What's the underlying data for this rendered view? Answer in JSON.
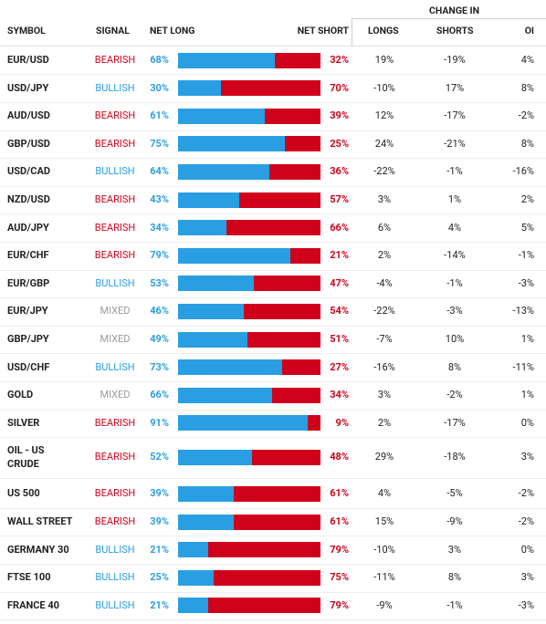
{
  "header": {
    "symbol": "SYMBOL",
    "signal": "SIGNAL",
    "net_long": "NET LONG",
    "net_short": "NET SHORT",
    "change_in": "CHANGE IN",
    "longs": "LONGS",
    "shorts": "SHORTS",
    "oi": "OI"
  },
  "colors": {
    "long": "#2a9ee2",
    "short": "#d0021b"
  },
  "table": {
    "rows": [
      {
        "symbol": "EUR/USD",
        "signal": "BEARISH",
        "signal_color": "#d0021b",
        "net_long": {
          "value": 68,
          "label": "68%"
        },
        "net_short": {
          "value": 32,
          "label": "32%"
        },
        "longs": "19%",
        "shorts": "-19%",
        "oi": "4%"
      },
      {
        "symbol": "USD/JPY",
        "signal": "BULLISH",
        "signal_color": "#2a9ee2",
        "net_long": {
          "value": 30,
          "label": "30%"
        },
        "net_short": {
          "value": 70,
          "label": "70%"
        },
        "longs": "-10%",
        "shorts": "17%",
        "oi": "8%"
      },
      {
        "symbol": "AUD/USD",
        "signal": "BEARISH",
        "signal_color": "#d0021b",
        "net_long": {
          "value": 61,
          "label": "61%"
        },
        "net_short": {
          "value": 39,
          "label": "39%"
        },
        "longs": "12%",
        "shorts": "-17%",
        "oi": "-2%"
      },
      {
        "symbol": "GBP/USD",
        "signal": "BEARISH",
        "signal_color": "#d0021b",
        "net_long": {
          "value": 75,
          "label": "75%"
        },
        "net_short": {
          "value": 25,
          "label": "25%"
        },
        "longs": "24%",
        "shorts": "-21%",
        "oi": "8%"
      },
      {
        "symbol": "USD/CAD",
        "signal": "BULLISH",
        "signal_color": "#2a9ee2",
        "net_long": {
          "value": 64,
          "label": "64%"
        },
        "net_short": {
          "value": 36,
          "label": "36%"
        },
        "longs": "-22%",
        "shorts": "-1%",
        "oi": "-16%"
      },
      {
        "symbol": "NZD/USD",
        "signal": "BEARISH",
        "signal_color": "#d0021b",
        "net_long": {
          "value": 43,
          "label": "43%"
        },
        "net_short": {
          "value": 57,
          "label": "57%"
        },
        "longs": "3%",
        "shorts": "1%",
        "oi": "2%"
      },
      {
        "symbol": "AUD/JPY",
        "signal": "BEARISH",
        "signal_color": "#d0021b",
        "net_long": {
          "value": 34,
          "label": "34%"
        },
        "net_short": {
          "value": 66,
          "label": "66%"
        },
        "longs": "6%",
        "shorts": "4%",
        "oi": "5%"
      },
      {
        "symbol": "EUR/CHF",
        "signal": "BEARISH",
        "signal_color": "#d0021b",
        "net_long": {
          "value": 79,
          "label": "79%"
        },
        "net_short": {
          "value": 21,
          "label": "21%"
        },
        "longs": "2%",
        "shorts": "-14%",
        "oi": "-1%"
      },
      {
        "symbol": "EUR/GBP",
        "signal": "BULLISH",
        "signal_color": "#2a9ee2",
        "net_long": {
          "value": 53,
          "label": "53%"
        },
        "net_short": {
          "value": 47,
          "label": "47%"
        },
        "longs": "-4%",
        "shorts": "-1%",
        "oi": "-3%"
      },
      {
        "symbol": "EUR/JPY",
        "signal": "MIXED",
        "signal_color": "#999999",
        "net_long": {
          "value": 46,
          "label": "46%"
        },
        "net_short": {
          "value": 54,
          "label": "54%"
        },
        "longs": "-22%",
        "shorts": "-3%",
        "oi": "-13%"
      },
      {
        "symbol": "GBP/JPY",
        "signal": "MIXED",
        "signal_color": "#999999",
        "net_long": {
          "value": 49,
          "label": "49%"
        },
        "net_short": {
          "value": 51,
          "label": "51%"
        },
        "longs": "-7%",
        "shorts": "10%",
        "oi": "1%"
      },
      {
        "symbol": "USD/CHF",
        "signal": "BULLISH",
        "signal_color": "#2a9ee2",
        "net_long": {
          "value": 73,
          "label": "73%"
        },
        "net_short": {
          "value": 27,
          "label": "27%"
        },
        "longs": "-16%",
        "shorts": "8%",
        "oi": "-11%"
      },
      {
        "symbol": "GOLD",
        "signal": "MIXED",
        "signal_color": "#999999",
        "net_long": {
          "value": 66,
          "label": "66%"
        },
        "net_short": {
          "value": 34,
          "label": "34%"
        },
        "longs": "3%",
        "shorts": "-2%",
        "oi": "1%"
      },
      {
        "symbol": "SILVER",
        "signal": "BEARISH",
        "signal_color": "#d0021b",
        "net_long": {
          "value": 91,
          "label": "91%"
        },
        "net_short": {
          "value": 9,
          "label": "9%"
        },
        "longs": "2%",
        "shorts": "-17%",
        "oi": "0%"
      },
      {
        "symbol": "OIL - US CRUDE",
        "signal": "BEARISH",
        "signal_color": "#d0021b",
        "net_long": {
          "value": 52,
          "label": "52%"
        },
        "net_short": {
          "value": 48,
          "label": "48%"
        },
        "longs": "29%",
        "shorts": "-18%",
        "oi": "3%"
      },
      {
        "symbol": "US 500",
        "signal": "BEARISH",
        "signal_color": "#d0021b",
        "net_long": {
          "value": 39,
          "label": "39%"
        },
        "net_short": {
          "value": 61,
          "label": "61%"
        },
        "longs": "4%",
        "shorts": "-5%",
        "oi": "-2%"
      },
      {
        "symbol": "WALL STREET",
        "signal": "BEARISH",
        "signal_color": "#d0021b",
        "net_long": {
          "value": 39,
          "label": "39%"
        },
        "net_short": {
          "value": 61,
          "label": "61%"
        },
        "longs": "15%",
        "shorts": "-9%",
        "oi": "-2%"
      },
      {
        "symbol": "GERMANY 30",
        "signal": "BULLISH",
        "signal_color": "#2a9ee2",
        "net_long": {
          "value": 21,
          "label": "21%"
        },
        "net_short": {
          "value": 79,
          "label": "79%"
        },
        "longs": "-10%",
        "shorts": "3%",
        "oi": "0%"
      },
      {
        "symbol": "FTSE 100",
        "signal": "BULLISH",
        "signal_color": "#2a9ee2",
        "net_long": {
          "value": 25,
          "label": "25%"
        },
        "net_short": {
          "value": 75,
          "label": "75%"
        },
        "longs": "-11%",
        "shorts": "8%",
        "oi": "3%"
      },
      {
        "symbol": "FRANCE 40",
        "signal": "BULLISH",
        "signal_color": "#2a9ee2",
        "net_long": {
          "value": 21,
          "label": "21%"
        },
        "net_short": {
          "value": 79,
          "label": "79%"
        },
        "longs": "-9%",
        "shorts": "-1%",
        "oi": "-3%"
      }
    ]
  }
}
